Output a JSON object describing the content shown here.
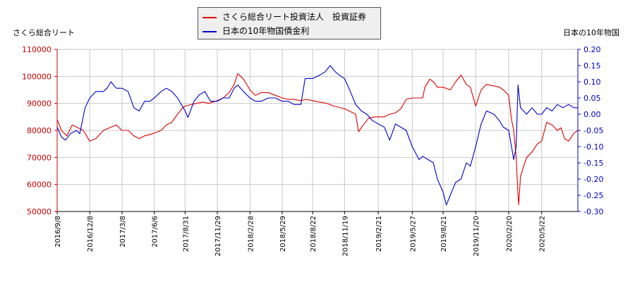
{
  "chart_data": {
    "type": "line",
    "x_ticks": [
      "2016/9/8",
      "2016/12/8",
      "2017/3/8",
      "2017/6/6",
      "2017/8/31",
      "2017/11/29",
      "2018/2/28",
      "2018/5/29",
      "2018/8/22",
      "2018/11/19",
      "2019/2/21",
      "2019/5/27",
      "2019/8/21",
      "2019/11/20",
      "2020/2/20",
      "2020/5/22"
    ],
    "x_range": [
      "2016/9/8",
      "2020/8/31"
    ],
    "y_left": {
      "label": "さくら総合リート",
      "ticks": [
        "110000",
        "100000",
        "90000",
        "80000",
        "70000",
        "60000",
        "50000"
      ],
      "range": [
        50000,
        110000
      ]
    },
    "y_right": {
      "label": "日本の10年物国",
      "ticks": [
        "0.20",
        "0.15",
        "0.10",
        "0.05",
        "0.00",
        "-0.05",
        "-0.10",
        "-0.15",
        "-0.20",
        "-0.25",
        "-0.30"
      ],
      "range": [
        -0.3,
        0.2
      ]
    },
    "grid": true,
    "legend_position": "top-center",
    "series": [
      {
        "name": "さくら総合リート投資法人　投資証券",
        "axis": "left",
        "color": "#dd0000",
        "points": [
          [
            "2016/9/8",
            84000
          ],
          [
            "2016/9/20",
            80000
          ],
          [
            "2016/10/5",
            78000
          ],
          [
            "2016/10/20",
            82000
          ],
          [
            "2016/11/5",
            81000
          ],
          [
            "2016/11/20",
            80000
          ],
          [
            "2016/12/8",
            76000
          ],
          [
            "2016/12/25",
            77000
          ],
          [
            "2017/1/15",
            80000
          ],
          [
            "2017/2/1",
            81000
          ],
          [
            "2017/2/20",
            82000
          ],
          [
            "2017/3/8",
            80000
          ],
          [
            "2017/3/25",
            80000
          ],
          [
            "2017/4/10",
            78000
          ],
          [
            "2017/4/25",
            77000
          ],
          [
            "2017/5/10",
            78000
          ],
          [
            "2017/5/25",
            78500
          ],
          [
            "2017/6/6",
            79000
          ],
          [
            "2017/6/25",
            80000
          ],
          [
            "2017/7/10",
            82000
          ],
          [
            "2017/7/25",
            83000
          ],
          [
            "2017/8/10",
            86000
          ],
          [
            "2017/8/25",
            88500
          ],
          [
            "2017/8/31",
            89000
          ],
          [
            "2017/9/15",
            89500
          ],
          [
            "2017/10/1",
            90000
          ],
          [
            "2017/10/20",
            90500
          ],
          [
            "2017/11/5",
            90000
          ],
          [
            "2017/11/29",
            91000
          ],
          [
            "2017/12/15",
            92000
          ],
          [
            "2018/1/1",
            94000
          ],
          [
            "2018/1/15",
            97000
          ],
          [
            "2018/1/25",
            101000
          ],
          [
            "2018/2/10",
            99000
          ],
          [
            "2018/2/28",
            95000
          ],
          [
            "2018/3/15",
            93000
          ],
          [
            "2018/4/1",
            94000
          ],
          [
            "2018/4/20",
            94000
          ],
          [
            "2018/5/10",
            93000
          ],
          [
            "2018/5/29",
            92000
          ],
          [
            "2018/6/15",
            91500
          ],
          [
            "2018/7/1",
            91500
          ],
          [
            "2018/7/20",
            91000
          ],
          [
            "2018/8/5",
            91500
          ],
          [
            "2018/8/22",
            91000
          ],
          [
            "2018/9/10",
            90500
          ],
          [
            "2018/10/1",
            90000
          ],
          [
            "2018/10/20",
            89000
          ],
          [
            "2018/11/5",
            88500
          ],
          [
            "2018/11/19",
            88000
          ],
          [
            "2018/12/5",
            87000
          ],
          [
            "2018/12/20",
            86000
          ],
          [
            "2018/12/28",
            79500
          ],
          [
            "2019/1/10",
            82000
          ],
          [
            "2019/1/25",
            84500
          ],
          [
            "2019/2/10",
            85000
          ],
          [
            "2019/2/21",
            85000
          ],
          [
            "2019/3/10",
            85000
          ],
          [
            "2019/3/25",
            86000
          ],
          [
            "2019/4/10",
            86500
          ],
          [
            "2019/4/25",
            88000
          ],
          [
            "2019/5/10",
            91500
          ],
          [
            "2019/5/27",
            92000
          ],
          [
            "2019/6/15",
            92000
          ],
          [
            "2019/6/25",
            92000
          ],
          [
            "2019/7/1",
            96000
          ],
          [
            "2019/7/15",
            99000
          ],
          [
            "2019/7/25",
            98000
          ],
          [
            "2019/8/5",
            96000
          ],
          [
            "2019/8/21",
            96000
          ],
          [
            "2019/9/10",
            95000
          ],
          [
            "2019/9/25",
            98000
          ],
          [
            "2019/10/10",
            100500
          ],
          [
            "2019/10/25",
            97000
          ],
          [
            "2019/11/5",
            96000
          ],
          [
            "2019/11/20",
            89000
          ],
          [
            "2019/12/5",
            95000
          ],
          [
            "2019/12/20",
            97000
          ],
          [
            "2020/1/10",
            96500
          ],
          [
            "2020/1/25",
            96000
          ],
          [
            "2020/2/5",
            95000
          ],
          [
            "2020/2/20",
            93000
          ],
          [
            "2020/2/28",
            84000
          ],
          [
            "2020/3/5",
            80000
          ],
          [
            "2020/3/12",
            70000
          ],
          [
            "2020/3/17",
            56000
          ],
          [
            "2020/3/19",
            52500
          ],
          [
            "2020/3/24",
            63000
          ],
          [
            "2020/3/31",
            66000
          ],
          [
            "2020/4/10",
            70000
          ],
          [
            "2020/4/25",
            72000
          ],
          [
            "2020/5/10",
            75000
          ],
          [
            "2020/5/22",
            76000
          ],
          [
            "2020/6/5",
            83000
          ],
          [
            "2020/6/20",
            82000
          ],
          [
            "2020/7/5",
            80000
          ],
          [
            "2020/7/15",
            81000
          ],
          [
            "2020/7/25",
            77000
          ],
          [
            "2020/8/5",
            76000
          ],
          [
            "2020/8/20",
            79000
          ],
          [
            "2020/8/31",
            80000
          ]
        ]
      },
      {
        "name": "日本の10年物国債金利",
        "axis": "right",
        "color": "#0000cc",
        "points": [
          [
            "2016/9/8",
            -0.04
          ],
          [
            "2016/9/20",
            -0.07
          ],
          [
            "2016/10/1",
            -0.08
          ],
          [
            "2016/10/15",
            -0.06
          ],
          [
            "2016/11/1",
            -0.05
          ],
          [
            "2016/11/10",
            -0.06
          ],
          [
            "2016/11/25",
            0.02
          ],
          [
            "2016/12/8",
            0.05
          ],
          [
            "2016/12/25",
            0.07
          ],
          [
            "2017/1/15",
            0.07
          ],
          [
            "2017/1/25",
            0.08
          ],
          [
            "2017/2/5",
            0.1
          ],
          [
            "2017/2/20",
            0.08
          ],
          [
            "2017/3/8",
            0.08
          ],
          [
            "2017/3/25",
            0.07
          ],
          [
            "2017/4/10",
            0.02
          ],
          [
            "2017/4/25",
            0.01
          ],
          [
            "2017/5/10",
            0.04
          ],
          [
            "2017/5/25",
            0.04
          ],
          [
            "2017/6/6",
            0.05
          ],
          [
            "2017/6/25",
            0.07
          ],
          [
            "2017/7/10",
            0.08
          ],
          [
            "2017/7/25",
            0.07
          ],
          [
            "2017/8/10",
            0.05
          ],
          [
            "2017/8/31",
            0.01
          ],
          [
            "2017/9/8",
            -0.01
          ],
          [
            "2017/9/25",
            0.04
          ],
          [
            "2017/10/10",
            0.06
          ],
          [
            "2017/10/25",
            0.07
          ],
          [
            "2017/11/10",
            0.04
          ],
          [
            "2017/11/29",
            0.04
          ],
          [
            "2017/12/15",
            0.05
          ],
          [
            "2018/1/1",
            0.05
          ],
          [
            "2018/1/15",
            0.08
          ],
          [
            "2018/1/25",
            0.09
          ],
          [
            "2018/2/10",
            0.07
          ],
          [
            "2018/2/28",
            0.05
          ],
          [
            "2018/3/15",
            0.04
          ],
          [
            "2018/4/1",
            0.04
          ],
          [
            "2018/4/20",
            0.05
          ],
          [
            "2018/5/10",
            0.05
          ],
          [
            "2018/5/29",
            0.04
          ],
          [
            "2018/6/15",
            0.04
          ],
          [
            "2018/7/1",
            0.03
          ],
          [
            "2018/7/20",
            0.03
          ],
          [
            "2018/8/1",
            0.11
          ],
          [
            "2018/8/22",
            0.11
          ],
          [
            "2018/9/10",
            0.12
          ],
          [
            "2018/9/25",
            0.13
          ],
          [
            "2018/10/10",
            0.15
          ],
          [
            "2018/10/25",
            0.13
          ],
          [
            "2018/11/5",
            0.12
          ],
          [
            "2018/11/19",
            0.11
          ],
          [
            "2018/12/5",
            0.07
          ],
          [
            "2018/12/20",
            0.03
          ],
          [
            "2019/1/5",
            0.01
          ],
          [
            "2019/1/20",
            0.0
          ],
          [
            "2019/2/5",
            -0.02
          ],
          [
            "2019/2/21",
            -0.03
          ],
          [
            "2019/3/10",
            -0.04
          ],
          [
            "2019/3/25",
            -0.08
          ],
          [
            "2019/4/10",
            -0.03
          ],
          [
            "2019/4/25",
            -0.04
          ],
          [
            "2019/5/10",
            -0.05
          ],
          [
            "2019/5/27",
            -0.1
          ],
          [
            "2019/6/15",
            -0.14
          ],
          [
            "2019/6/25",
            -0.13
          ],
          [
            "2019/7/10",
            -0.14
          ],
          [
            "2019/7/25",
            -0.15
          ],
          [
            "2019/8/5",
            -0.2
          ],
          [
            "2019/8/21",
            -0.24
          ],
          [
            "2019/8/30",
            -0.28
          ],
          [
            "2019/9/10",
            -0.25
          ],
          [
            "2019/9/25",
            -0.21
          ],
          [
            "2019/10/10",
            -0.2
          ],
          [
            "2019/10/25",
            -0.15
          ],
          [
            "2019/11/5",
            -0.16
          ],
          [
            "2019/11/20",
            -0.1
          ],
          [
            "2019/12/5",
            -0.03
          ],
          [
            "2019/12/20",
            0.01
          ],
          [
            "2020/1/10",
            0.0
          ],
          [
            "2020/1/25",
            -0.02
          ],
          [
            "2020/2/5",
            -0.04
          ],
          [
            "2020/2/20",
            -0.05
          ],
          [
            "2020/3/5",
            -0.14
          ],
          [
            "2020/3/12",
            -0.1
          ],
          [
            "2020/3/17",
            0.09
          ],
          [
            "2020/3/24",
            0.02
          ],
          [
            "2020/4/10",
            0.0
          ],
          [
            "2020/4/25",
            0.02
          ],
          [
            "2020/5/10",
            0.0
          ],
          [
            "2020/5/22",
            0.0
          ],
          [
            "2020/6/5",
            0.02
          ],
          [
            "2020/6/20",
            0.01
          ],
          [
            "2020/7/5",
            0.03
          ],
          [
            "2020/7/20",
            0.02
          ],
          [
            "2020/8/5",
            0.03
          ],
          [
            "2020/8/20",
            0.02
          ],
          [
            "2020/8/31",
            0.02
          ]
        ]
      }
    ]
  }
}
